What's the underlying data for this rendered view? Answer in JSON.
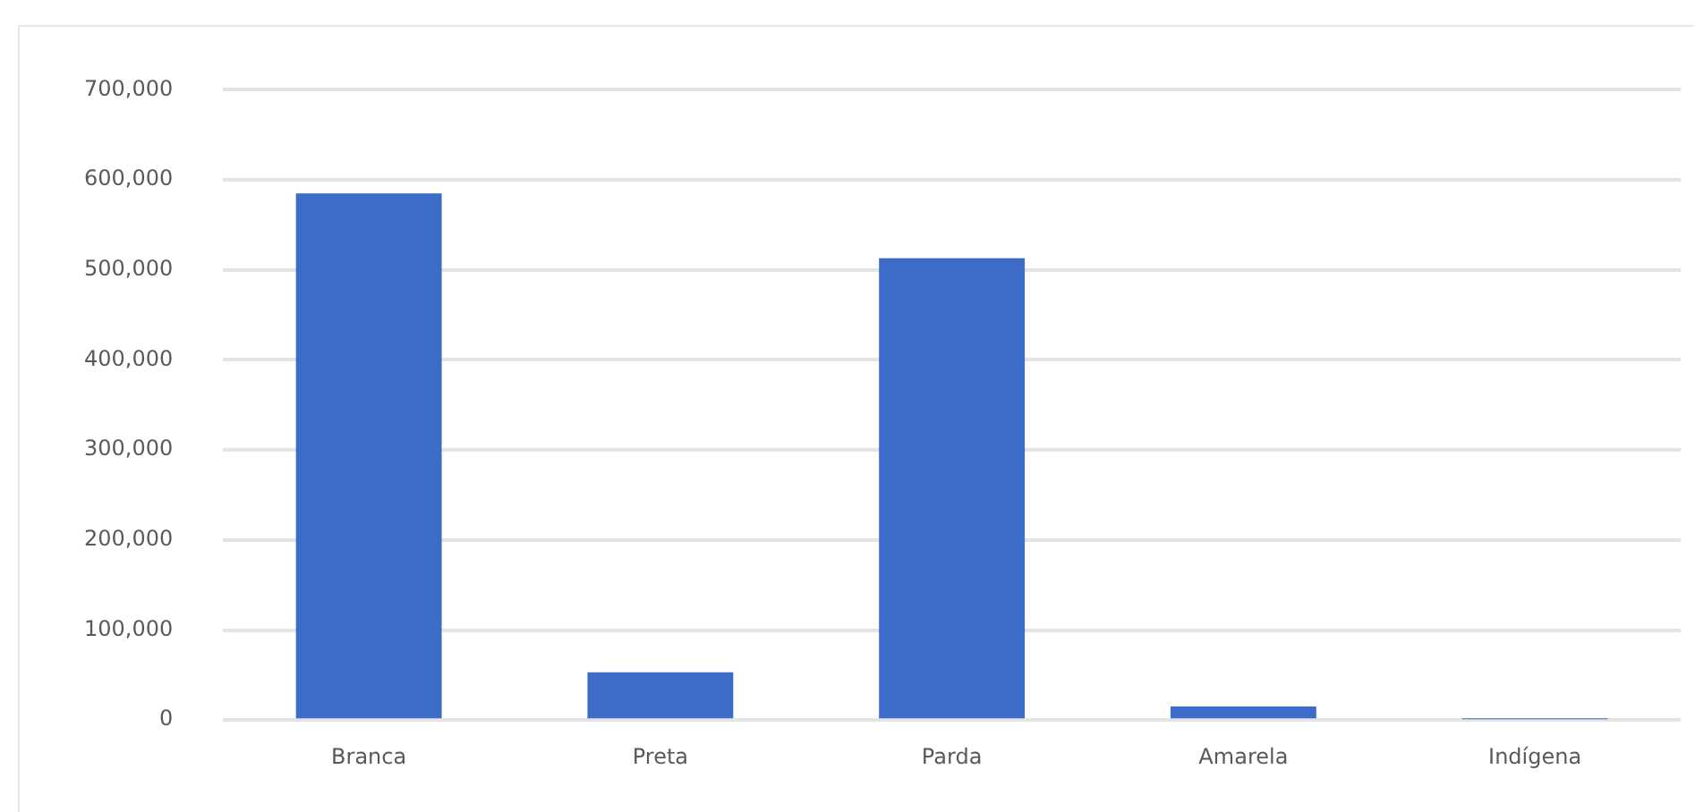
{
  "chart_data": {
    "type": "bar",
    "categories": [
      "Branca",
      "Preta",
      "Parda",
      "Amarela",
      "Indígena"
    ],
    "values": [
      585000,
      53000,
      513000,
      15000,
      1000
    ],
    "color": "#3d6cc8",
    "ylim": [
      0,
      700000
    ],
    "yticks": [
      {
        "value": 0,
        "label": "0"
      },
      {
        "value": 100000,
        "label": "100,000"
      },
      {
        "value": 200000,
        "label": "200,000"
      },
      {
        "value": 300000,
        "label": "300,000"
      },
      {
        "value": 400000,
        "label": "400,000"
      },
      {
        "value": 500000,
        "label": "500,000"
      },
      {
        "value": 600000,
        "label": "600,000"
      },
      {
        "value": 700000,
        "label": "700,000"
      }
    ],
    "grid": "y",
    "legend": false
  }
}
